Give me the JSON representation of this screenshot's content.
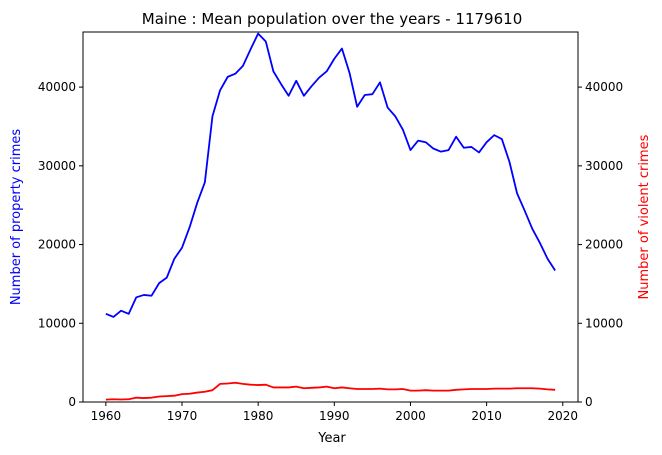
{
  "chart_data": {
    "type": "line",
    "title": "Maine : Mean population over the years - 1179610",
    "xlabel": "Year",
    "ylabel_left": "Number of property crimes",
    "ylabel_right": "Number of violent crimes",
    "xlim": [
      1957,
      2022
    ],
    "ylim_left": [
      0,
      47000
    ],
    "ylim_right": [
      0,
      47000
    ],
    "xticks": [
      1960,
      1970,
      1980,
      1990,
      2000,
      2010,
      2020
    ],
    "yticks_left": [
      0,
      10000,
      20000,
      30000,
      40000
    ],
    "yticks_right": [
      0,
      10000,
      20000,
      30000,
      40000
    ],
    "grid": false,
    "x": [
      1960,
      1961,
      1962,
      1963,
      1964,
      1965,
      1966,
      1967,
      1968,
      1969,
      1970,
      1971,
      1972,
      1973,
      1974,
      1975,
      1976,
      1977,
      1978,
      1979,
      1980,
      1981,
      1982,
      1983,
      1984,
      1985,
      1986,
      1987,
      1988,
      1989,
      1990,
      1991,
      1992,
      1993,
      1994,
      1995,
      1996,
      1997,
      1998,
      1999,
      2000,
      2001,
      2002,
      2003,
      2004,
      2005,
      2006,
      2007,
      2008,
      2009,
      2010,
      2011,
      2012,
      2013,
      2014,
      2015,
      2016,
      2017,
      2018,
      2019
    ],
    "series": [
      {
        "axis": "left",
        "color": "#0000ff",
        "values": [
          11200,
          10800,
          11600,
          11200,
          13300,
          13600,
          13500,
          15100,
          15800,
          18200,
          19600,
          22200,
          25300,
          27900,
          36300,
          39600,
          41300,
          41700,
          42700,
          44800,
          46800,
          45800,
          42000,
          40400,
          38900,
          40800,
          38900,
          40100,
          41200,
          42000,
          43600,
          44900,
          41800,
          37500,
          39000,
          39100,
          40600,
          37400,
          36300,
          34600,
          32000,
          33200,
          33000,
          32200,
          31800,
          32000,
          33700,
          32300,
          32400,
          31700,
          33000,
          33900,
          33400,
          30500,
          26500,
          24300,
          22000,
          20200,
          18200,
          16700
        ]
      },
      {
        "axis": "right",
        "color": "#ff0000",
        "values": [
          300,
          350,
          320,
          350,
          550,
          500,
          550,
          700,
          750,
          800,
          1000,
          1050,
          1200,
          1300,
          1500,
          2300,
          2350,
          2450,
          2300,
          2200,
          2150,
          2200,
          1850,
          1850,
          1850,
          1950,
          1750,
          1800,
          1850,
          1950,
          1750,
          1850,
          1750,
          1650,
          1650,
          1650,
          1700,
          1600,
          1600,
          1650,
          1450,
          1450,
          1500,
          1450,
          1450,
          1450,
          1550,
          1600,
          1650,
          1650,
          1650,
          1700,
          1700,
          1700,
          1750,
          1750,
          1750,
          1700,
          1600,
          1550
        ]
      }
    ]
  }
}
